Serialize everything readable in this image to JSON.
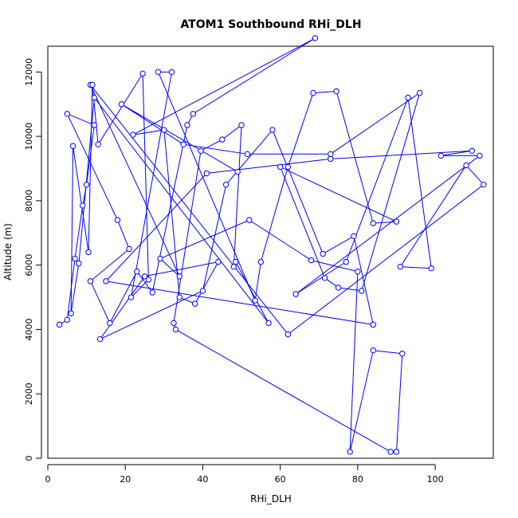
{
  "chart_data": {
    "type": "scatter",
    "title": "ATOM1 Southbound RHi_DLH",
    "xlabel": "RHi_DLH",
    "ylabel": "Altitude (m)",
    "xlim": [
      0,
      115
    ],
    "ylim": [
      0,
      12800
    ],
    "x_ticks": [
      0,
      20,
      40,
      60,
      80,
      100
    ],
    "y_ticks": [
      0,
      2000,
      4000,
      6000,
      8000,
      10000,
      12000
    ],
    "grid": false,
    "series_color": "#0000ff",
    "connect_points": true,
    "points": [
      {
        "x": 3,
        "y": 4150
      },
      {
        "x": 5,
        "y": 4300
      },
      {
        "x": 7,
        "y": 6200
      },
      {
        "x": 9,
        "y": 7850
      },
      {
        "x": 10,
        "y": 8500
      },
      {
        "x": 12,
        "y": 10350
      },
      {
        "x": 5,
        "y": 10700
      },
      {
        "x": 18,
        "y": 7400
      },
      {
        "x": 21,
        "y": 6500
      },
      {
        "x": 11,
        "y": 5500
      },
      {
        "x": 16,
        "y": 4200
      },
      {
        "x": 23,
        "y": 5800
      },
      {
        "x": 27,
        "y": 5150
      },
      {
        "x": 36,
        "y": 10350
      },
      {
        "x": 37.5,
        "y": 10700
      },
      {
        "x": 69,
        "y": 13050
      },
      {
        "x": 22,
        "y": 10050
      },
      {
        "x": 30,
        "y": 10200
      },
      {
        "x": 34,
        "y": 5000
      },
      {
        "x": 38,
        "y": 4800
      },
      {
        "x": 44,
        "y": 6100
      },
      {
        "x": 25,
        "y": 5650
      },
      {
        "x": 13.5,
        "y": 3700
      },
      {
        "x": 40,
        "y": 5200
      },
      {
        "x": 46,
        "y": 8500
      },
      {
        "x": 58,
        "y": 10200
      },
      {
        "x": 71,
        "y": 6350
      },
      {
        "x": 79,
        "y": 6900
      },
      {
        "x": 84,
        "y": 4150
      },
      {
        "x": 15,
        "y": 5500
      },
      {
        "x": 41,
        "y": 8850
      },
      {
        "x": 73,
        "y": 9300
      },
      {
        "x": 109.5,
        "y": 9550
      },
      {
        "x": 101.5,
        "y": 9400
      },
      {
        "x": 111.5,
        "y": 9400
      },
      {
        "x": 64,
        "y": 5100
      },
      {
        "x": 77,
        "y": 6100
      },
      {
        "x": 93,
        "y": 11200
      },
      {
        "x": 99,
        "y": 5900
      },
      {
        "x": 91,
        "y": 5950
      },
      {
        "x": 108,
        "y": 9100
      },
      {
        "x": 112.5,
        "y": 8500
      },
      {
        "x": 62,
        "y": 3850
      },
      {
        "x": 11,
        "y": 11600
      },
      {
        "x": 34,
        "y": 5650
      },
      {
        "x": 29,
        "y": 6200
      },
      {
        "x": 52,
        "y": 7400
      },
      {
        "x": 68,
        "y": 6150
      },
      {
        "x": 80,
        "y": 5800
      },
      {
        "x": 78,
        "y": 200
      },
      {
        "x": 84,
        "y": 3350
      },
      {
        "x": 91.5,
        "y": 3250
      },
      {
        "x": 90,
        "y": 200
      },
      {
        "x": 88.5,
        "y": 200
      },
      {
        "x": 33,
        "y": 4000
      },
      {
        "x": 32.5,
        "y": 4200
      },
      {
        "x": 39.5,
        "y": 9550
      },
      {
        "x": 45,
        "y": 9900
      },
      {
        "x": 50,
        "y": 10350
      },
      {
        "x": 48,
        "y": 5950
      },
      {
        "x": 48.5,
        "y": 6100
      },
      {
        "x": 57,
        "y": 4200
      },
      {
        "x": 12,
        "y": 11200
      },
      {
        "x": 8,
        "y": 6050
      },
      {
        "x": 6,
        "y": 4500
      },
      {
        "x": 6.5,
        "y": 9700
      },
      {
        "x": 10.5,
        "y": 6400
      },
      {
        "x": 11.5,
        "y": 11600
      },
      {
        "x": 13,
        "y": 9750
      },
      {
        "x": 24.5,
        "y": 11950
      },
      {
        "x": 26,
        "y": 5550
      },
      {
        "x": 21.5,
        "y": 5000
      },
      {
        "x": 32,
        "y": 12000
      },
      {
        "x": 28.5,
        "y": 12000
      },
      {
        "x": 53.5,
        "y": 4900
      },
      {
        "x": 55,
        "y": 6100
      },
      {
        "x": 62,
        "y": 9050
      },
      {
        "x": 68.5,
        "y": 11350
      },
      {
        "x": 74.5,
        "y": 11400
      },
      {
        "x": 84,
        "y": 7300
      },
      {
        "x": 90,
        "y": 7350
      },
      {
        "x": 60,
        "y": 9050
      },
      {
        "x": 71.5,
        "y": 5600
      },
      {
        "x": 75,
        "y": 5300
      },
      {
        "x": 81,
        "y": 5200
      },
      {
        "x": 96,
        "y": 11350
      },
      {
        "x": 73,
        "y": 9450
      },
      {
        "x": 51.5,
        "y": 9450
      },
      {
        "x": 35,
        "y": 9750
      },
      {
        "x": 19,
        "y": 11000
      },
      {
        "x": 49,
        "y": 8900
      }
    ]
  }
}
